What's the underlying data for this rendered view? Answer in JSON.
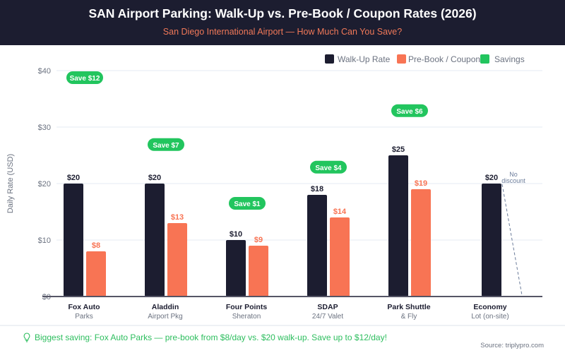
{
  "header": {
    "title": "SAN Airport Parking: Walk-Up vs. Pre-Book / Coupon Rates (2026)",
    "subtitle": "San Diego International Airport — How Much Can You Save?"
  },
  "colors": {
    "walkup": "#1c1d30",
    "prebook": "#f87454",
    "savings": "#22c55e",
    "grid": "#eef2f7",
    "axis": "#555566",
    "tick": "#6b7280"
  },
  "chart_data": {
    "type": "bar",
    "title": "SAN Airport Parking: Walk-Up vs. Pre-Book / Coupon Rates (2026)",
    "subtitle": "San Diego International Airport — How Much Can You Save?",
    "xlabel": "",
    "ylabel": "Daily Rate (USD)",
    "ylim": [
      0,
      40
    ],
    "yticks": [
      0,
      10,
      20,
      30,
      40
    ],
    "ytick_labels": [
      "$0",
      "$10",
      "$20",
      "$30",
      "$40"
    ],
    "grid": true,
    "legend": [
      "Walk-Up Rate",
      "Pre-Book / Coupon",
      "Savings"
    ],
    "legend_position": "top-right",
    "categories": [
      {
        "line1": "Fox Auto",
        "line2": "Parks"
      },
      {
        "line1": "Aladdin",
        "line2": "Airport Pkg"
      },
      {
        "line1": "Four Points",
        "line2": "Sheraton"
      },
      {
        "line1": "SDAP",
        "line2": "24/7 Valet"
      },
      {
        "line1": "Park Shuttle",
        "line2": "& Fly"
      },
      {
        "line1": "Economy",
        "line2": "Lot (on-site)"
      }
    ],
    "series": [
      {
        "name": "Walk-Up Rate",
        "values": [
          20,
          20,
          10,
          18,
          25,
          20
        ],
        "labels": [
          "$20",
          "$20",
          "$10",
          "$18",
          "$25",
          "$20"
        ]
      },
      {
        "name": "Pre-Book / Coupon",
        "values": [
          8,
          13,
          9,
          14,
          19,
          null
        ],
        "labels": [
          "$8",
          "$13",
          "$9",
          "$14",
          "$19",
          null
        ]
      }
    ],
    "savings": [
      {
        "value": 12,
        "label": "Save $12",
        "y_position": 38.75
      },
      {
        "value": 7,
        "label": "Save $7",
        "y_position": 26.9
      },
      {
        "value": 1,
        "label": "Save $1",
        "y_position": 16.5
      },
      {
        "value": 4,
        "label": "Save $4",
        "y_position": 22.9
      },
      {
        "value": 6,
        "label": "Save $6",
        "y_position": 32.9
      },
      null
    ],
    "annotations": [
      {
        "category": "Economy",
        "text_line1": "No",
        "text_line2": "discount"
      }
    ]
  },
  "footer": {
    "insight_icon": "lightbulb-icon",
    "insight": "Biggest saving: Fox Auto Parks — pre-book from $8/day vs. $20 walk-up. Save up to $12/day!",
    "source": "Source: triplypro.com"
  }
}
